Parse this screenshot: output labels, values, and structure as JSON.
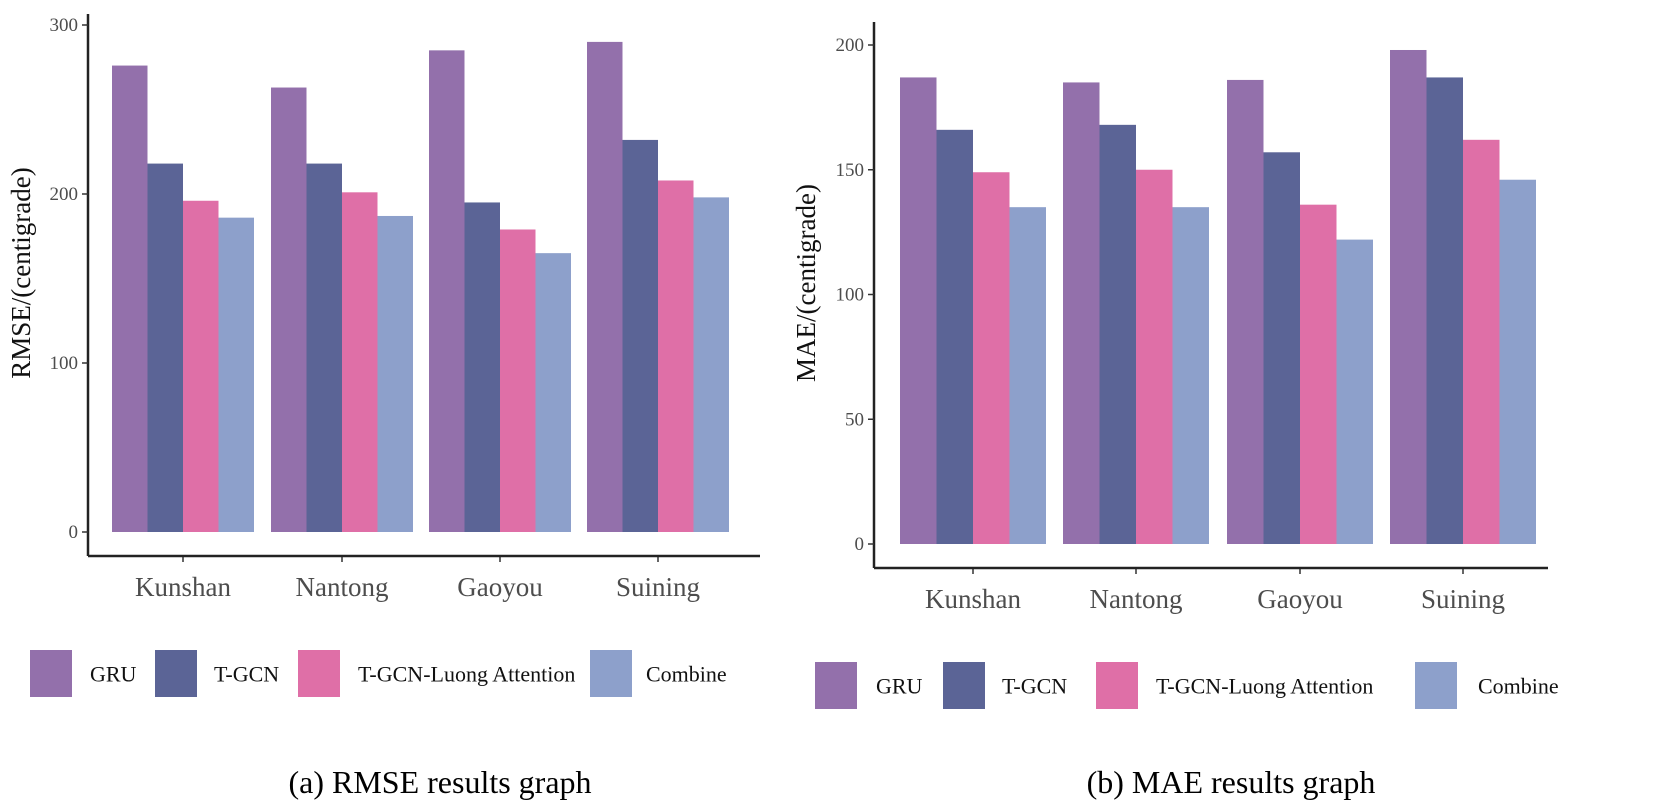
{
  "chart_data": [
    {
      "type": "bar",
      "title": "",
      "caption": "(a) RMSE results graph",
      "xlabel": "",
      "ylabel": "RMSE/(centigrade)",
      "ylim": [
        0,
        300
      ],
      "yticks": [
        0,
        100,
        200,
        300
      ],
      "categories": [
        "Kunshan",
        "Nantong",
        "Gaoyou",
        "Suining"
      ],
      "series": [
        {
          "name": "GRU",
          "color": "#9370ab",
          "values": [
            276,
            263,
            285,
            290
          ]
        },
        {
          "name": "T-GCN",
          "color": "#5b6496",
          "values": [
            218,
            218,
            195,
            232
          ]
        },
        {
          "name": "T-GCN-Luong Attention",
          "color": "#df6fa7",
          "values": [
            196,
            201,
            179,
            208
          ]
        },
        {
          "name": "Combine",
          "color": "#8da0cb",
          "values": [
            186,
            187,
            165,
            198
          ]
        }
      ],
      "legend_position": "bottom"
    },
    {
      "type": "bar",
      "title": "",
      "caption": "(b) MAE results graph",
      "xlabel": "",
      "ylabel": "MAE/(centigrade)",
      "ylim": [
        0,
        200
      ],
      "yticks": [
        0,
        50,
        100,
        150,
        200
      ],
      "categories": [
        "Kunshan",
        "Nantong",
        "Gaoyou",
        "Suining"
      ],
      "series": [
        {
          "name": "GRU",
          "color": "#9370ab",
          "values": [
            187,
            185,
            186,
            198
          ]
        },
        {
          "name": "T-GCN",
          "color": "#5b6496",
          "values": [
            166,
            168,
            157,
            187
          ]
        },
        {
          "name": "T-GCN-Luong Attention",
          "color": "#df6fa7",
          "values": [
            149,
            150,
            136,
            162
          ]
        },
        {
          "name": "Combine",
          "color": "#8da0cb",
          "values": [
            135,
            135,
            122,
            146
          ]
        }
      ],
      "legend_position": "bottom"
    }
  ]
}
